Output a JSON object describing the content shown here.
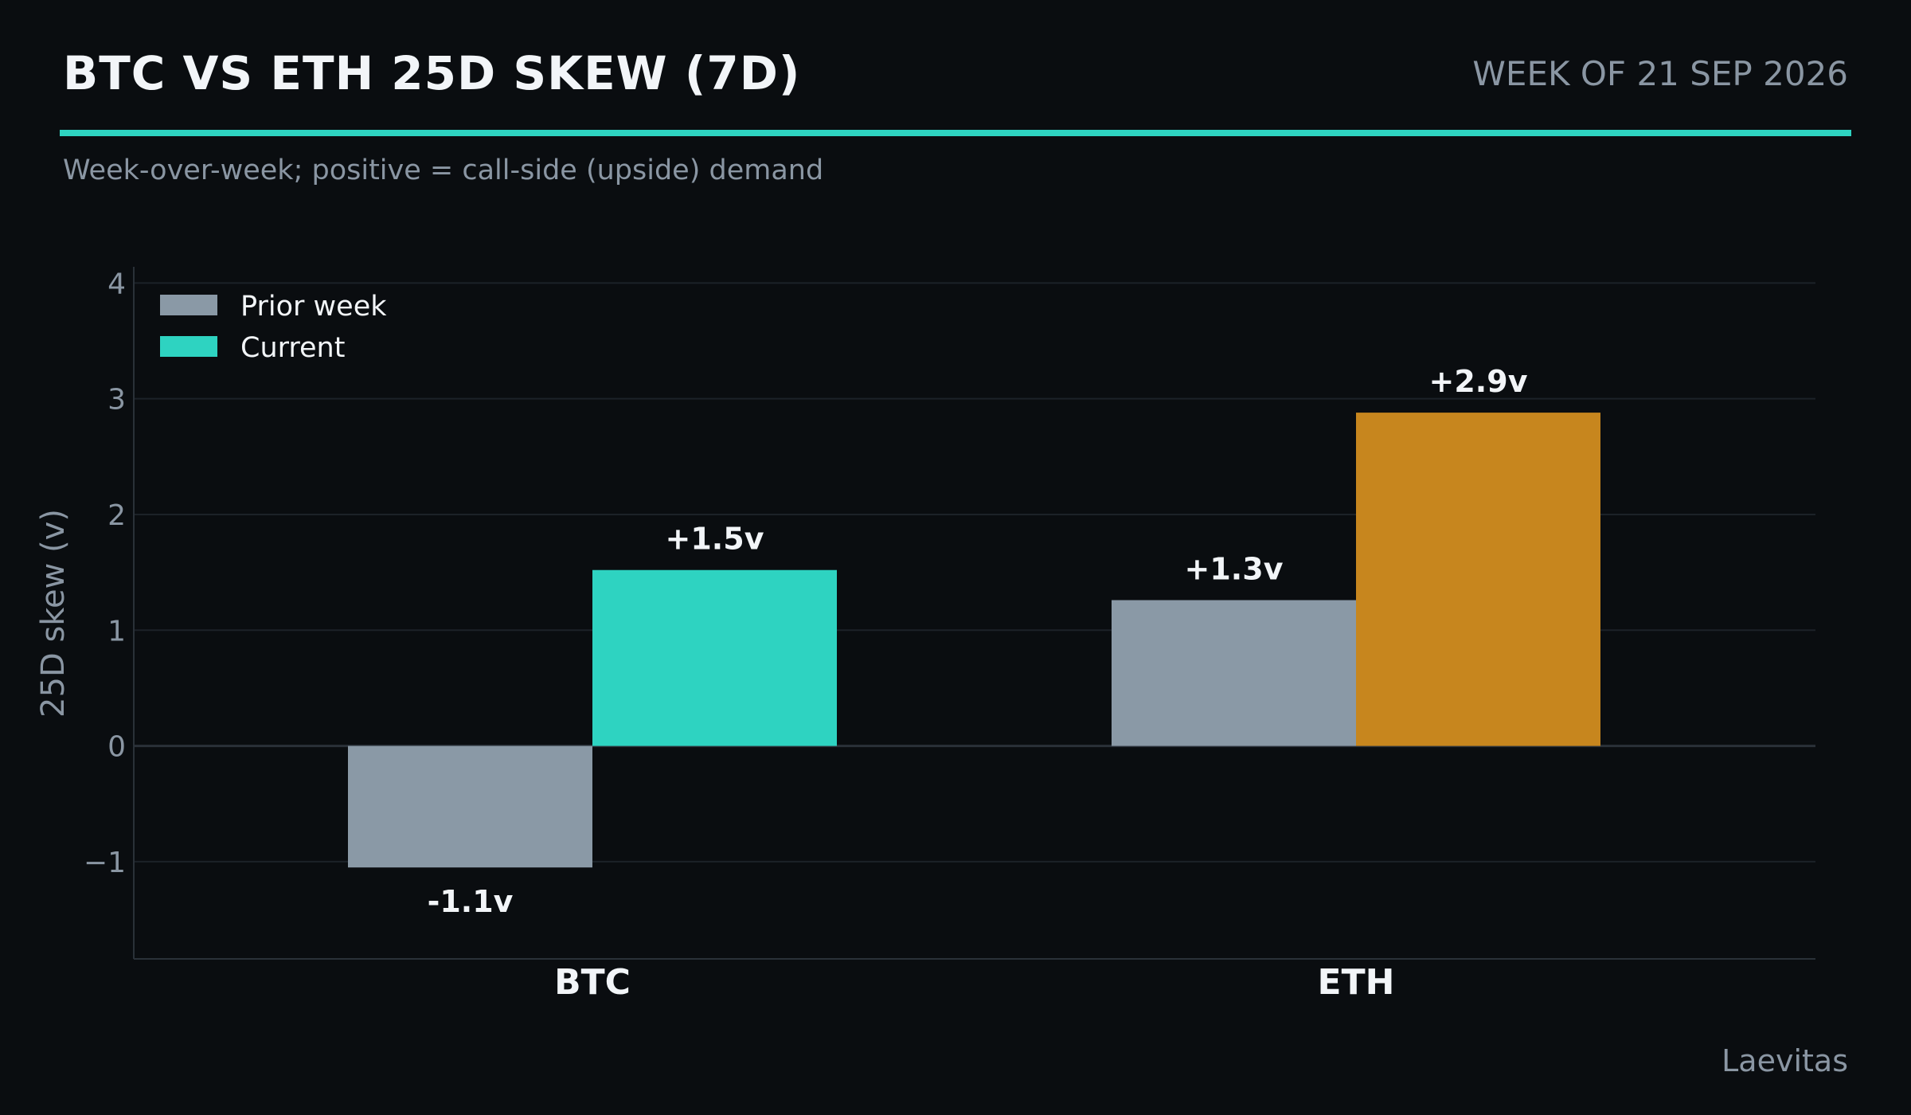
{
  "header": {
    "title": "BTC VS ETH 25D SKEW (7D)",
    "date": "WEEK OF 21 SEP 2026",
    "subtitle": "Week-over-week; positive = call-side (upside) demand"
  },
  "footer": {
    "source": "Laevitas"
  },
  "colors": {
    "accent": "#2ed3c1",
    "prior": "#8a99a6",
    "current_btc": "#2ed3c1",
    "current_eth": "#c7861e",
    "background": "#0a0d10"
  },
  "chart_data": {
    "type": "bar",
    "categories": [
      "BTC",
      "ETH"
    ],
    "series": [
      {
        "name": "Prior week",
        "values": [
          -1.05,
          1.26
        ],
        "labels": [
          "-1.1v",
          "+1.3v"
        ],
        "colors": [
          "#8a99a6",
          "#8a99a6"
        ]
      },
      {
        "name": "Current",
        "values": [
          1.52,
          2.88
        ],
        "labels": [
          "+1.5v",
          "+2.9v"
        ],
        "colors": [
          "#2ed3c1",
          "#c7861e"
        ]
      }
    ],
    "ylabel": "25D skew (v)",
    "xlabel": "",
    "ylim": [
      -1.84,
      4.14
    ],
    "yticks": [
      "4",
      "3",
      "2",
      "1",
      "0",
      "−1"
    ],
    "ytick_values": [
      4,
      3,
      2,
      1,
      0,
      -1
    ],
    "grid": true,
    "legend_position": "top-left"
  }
}
